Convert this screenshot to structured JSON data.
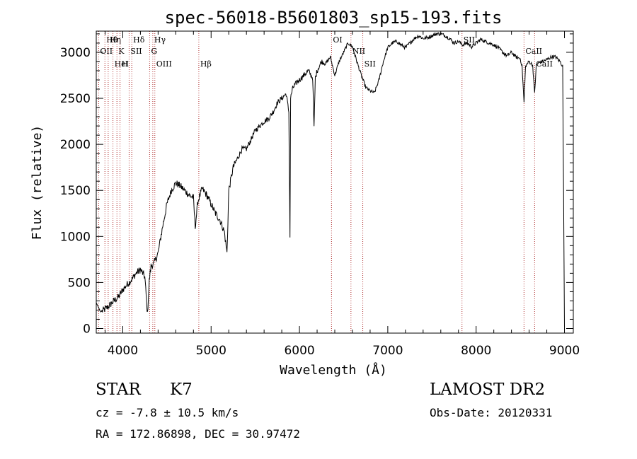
{
  "chart_data": {
    "type": "line",
    "title": "spec-56018-B5601803_sp15-193.fits",
    "xlabel": "Wavelength (Å)",
    "ylabel": "Flux (relative)",
    "xlim": [
      3700,
      9100
    ],
    "ylim": [
      -50,
      3230
    ],
    "xticks": [
      4000,
      5000,
      6000,
      7000,
      8000,
      9000
    ],
    "yticks": [
      0,
      500,
      1000,
      1500,
      2000,
      2500,
      3000
    ],
    "grid": false,
    "series": [
      {
        "x": [
          3700,
          3750,
          3800,
          3850,
          3900,
          3950,
          4000,
          4050,
          4100,
          4150,
          4200,
          4250,
          4280,
          4300,
          4320,
          4350,
          4400,
          4450,
          4500,
          4550,
          4600,
          4650,
          4700,
          4750,
          4800,
          4820,
          4850,
          4900,
          4950,
          5000,
          5050,
          5100,
          5150,
          5180,
          5200,
          5250,
          5300,
          5350,
          5400,
          5450,
          5500,
          5550,
          5600,
          5650,
          5700,
          5750,
          5800,
          5850,
          5880,
          5893,
          5900,
          5920,
          5950,
          6000,
          6050,
          6100,
          6150,
          6165,
          6180,
          6200,
          6250,
          6300,
          6350,
          6400,
          6450,
          6500,
          6550,
          6600,
          6650,
          6700,
          6750,
          6800,
          6850,
          6900,
          6950,
          7000,
          7050,
          7100,
          7150,
          7200,
          7250,
          7300,
          7350,
          7400,
          7450,
          7500,
          7550,
          7600,
          7650,
          7700,
          7750,
          7800,
          7850,
          7900,
          7950,
          8000,
          8050,
          8100,
          8150,
          8200,
          8250,
          8300,
          8350,
          8400,
          8450,
          8500,
          8520,
          8542,
          8560,
          8600,
          8640,
          8662,
          8680,
          8700,
          8750,
          8800,
          8850,
          8900,
          8950,
          8980,
          9000
        ],
        "y": [
          280,
          180,
          210,
          250,
          300,
          340,
          420,
          480,
          530,
          600,
          640,
          560,
          150,
          520,
          680,
          700,
          820,
          1100,
          1350,
          1500,
          1580,
          1550,
          1500,
          1450,
          1420,
          1100,
          1380,
          1520,
          1450,
          1350,
          1250,
          1180,
          1050,
          820,
          1500,
          1750,
          1850,
          1950,
          1950,
          2050,
          2150,
          2200,
          2250,
          2280,
          2350,
          2450,
          2500,
          2550,
          2350,
          1000,
          2500,
          2600,
          2650,
          2700,
          2750,
          2800,
          2720,
          2180,
          2720,
          2800,
          2900,
          2880,
          2950,
          2750,
          2900,
          3000,
          3100,
          3060,
          2900,
          2750,
          2620,
          2580,
          2560,
          2700,
          2900,
          3050,
          3100,
          3120,
          3080,
          3050,
          3100,
          3150,
          3180,
          3150,
          3160,
          3180,
          3200,
          3200,
          3180,
          3150,
          3100,
          3120,
          3080,
          3100,
          3060,
          3100,
          3140,
          3120,
          3100,
          3080,
          3050,
          3000,
          2960,
          3000,
          2950,
          2930,
          2850,
          2450,
          2850,
          2900,
          2860,
          2550,
          2850,
          2880,
          2900,
          2920,
          2950,
          2950,
          2900,
          2850,
          20
        ]
      }
    ],
    "lines": [
      {
        "label": "Hθ",
        "x": 3798
      },
      {
        "label": "OII",
        "x": 3727
      },
      {
        "label": "HeI",
        "x": 3889
      },
      {
        "label": "Hη",
        "x": 3835
      },
      {
        "label": "K",
        "x": 3934
      },
      {
        "label": "H",
        "x": 3969
      },
      {
        "label": "Hδ",
        "x": 4102
      },
      {
        "label": "SII",
        "x": 4072
      },
      {
        "label": "OIII",
        "x": 4363
      },
      {
        "label": "Hγ",
        "x": 4340
      },
      {
        "label": "G",
        "x": 4304
      },
      {
        "label": "Hβ",
        "x": 4861
      },
      {
        "label": "OI",
        "x": 6363
      },
      {
        "label": "NII",
        "x": 6583
      },
      {
        "label": "SII",
        "x": 6717
      },
      {
        "label": "SII",
        "x": 7840
      },
      {
        "label": "CaII",
        "x": 8542
      },
      {
        "label": "CaII",
        "x": 8662
      }
    ]
  },
  "info": {
    "object_class": "STAR",
    "subclass": "K7",
    "survey": "LAMOST DR2",
    "cz": "cz = -7.8 ± 10.5 km/s",
    "obs_date": "Obs-Date: 20120331",
    "coords": "RA = 172.86898, DEC =  30.97472"
  }
}
